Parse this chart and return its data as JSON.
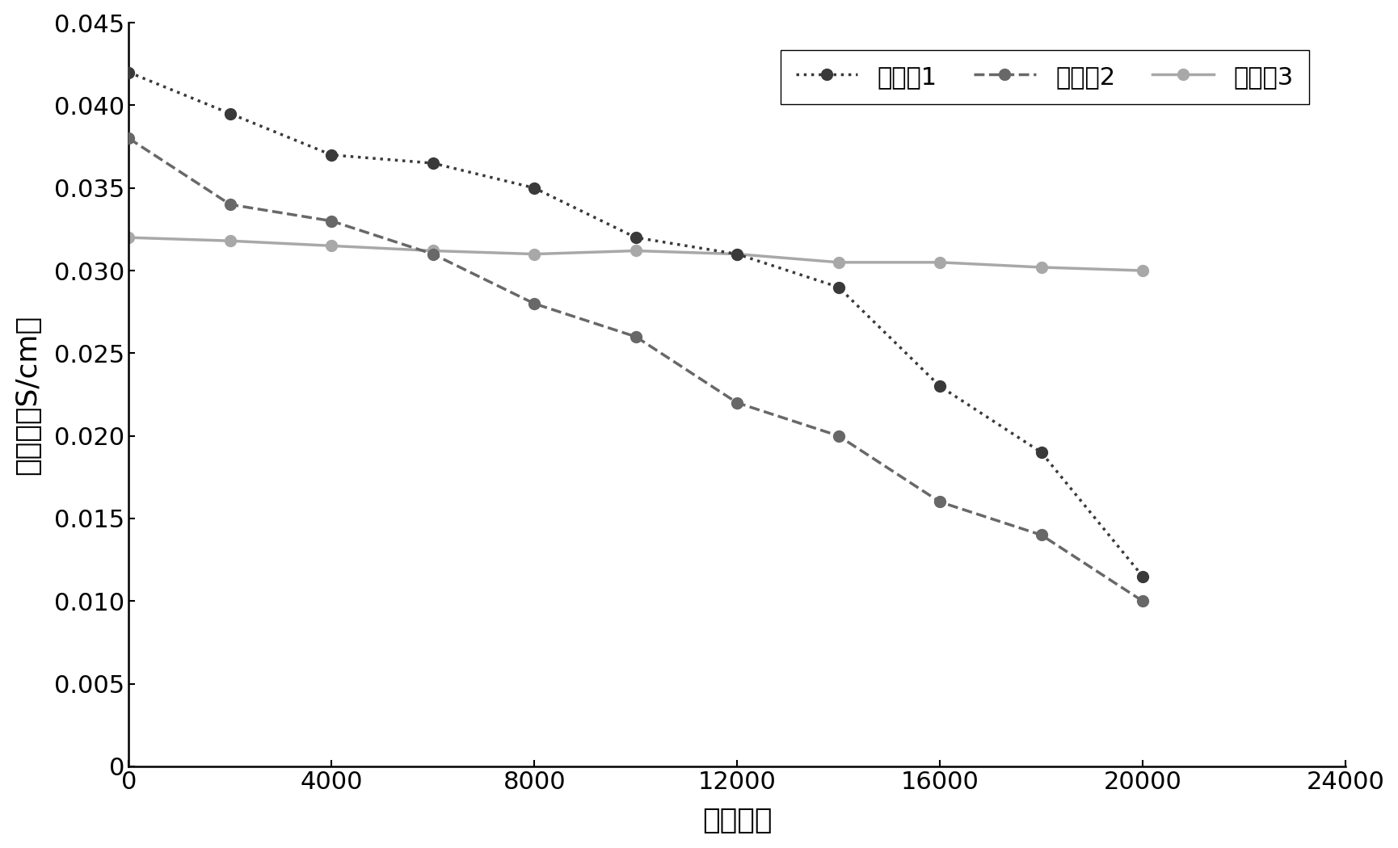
{
  "series": [
    {
      "label": "对比例1",
      "x": [
        0,
        2000,
        4000,
        6000,
        8000,
        10000,
        12000,
        14000,
        16000,
        18000,
        20000
      ],
      "y": [
        0.042,
        0.0395,
        0.037,
        0.0365,
        0.035,
        0.032,
        0.031,
        0.029,
        0.023,
        0.019,
        0.0115
      ],
      "color": "#3a3a3a",
      "linestyle": "dotted",
      "linewidth": 2.5,
      "marker": "o",
      "markersize": 10,
      "zorder": 4
    },
    {
      "label": "对比例2",
      "x": [
        0,
        2000,
        4000,
        6000,
        8000,
        10000,
        12000,
        14000,
        16000,
        18000,
        20000
      ],
      "y": [
        0.038,
        0.034,
        0.033,
        0.031,
        0.028,
        0.026,
        0.022,
        0.02,
        0.016,
        0.014,
        0.01
      ],
      "color": "#686868",
      "linestyle": "dashed",
      "linewidth": 2.5,
      "marker": "o",
      "markersize": 10,
      "zorder": 3
    },
    {
      "label": "实施例3",
      "x": [
        0,
        2000,
        4000,
        6000,
        8000,
        10000,
        12000,
        14000,
        16000,
        18000,
        20000
      ],
      "y": [
        0.032,
        0.0318,
        0.0315,
        0.0312,
        0.031,
        0.0312,
        0.031,
        0.0305,
        0.0305,
        0.0302,
        0.03
      ],
      "color": "#a8a8a8",
      "linestyle": "solid",
      "linewidth": 2.5,
      "marker": "o",
      "markersize": 10,
      "zorder": 2
    }
  ],
  "xlabel": "循环次数",
  "ylabel": "电导率（S/cm）",
  "xlim": [
    0,
    24000
  ],
  "ylim": [
    0,
    0.045
  ],
  "xticks": [
    0,
    4000,
    8000,
    12000,
    16000,
    20000,
    24000
  ],
  "yticks": [
    0,
    0.005,
    0.01,
    0.015,
    0.02,
    0.025,
    0.03,
    0.035,
    0.04,
    0.045
  ],
  "figsize": [
    17.3,
    10.5
  ],
  "dpi": 100,
  "background_color": "#ffffff",
  "font_size_axis_label": 26,
  "font_size_tick": 22,
  "font_size_legend": 22
}
